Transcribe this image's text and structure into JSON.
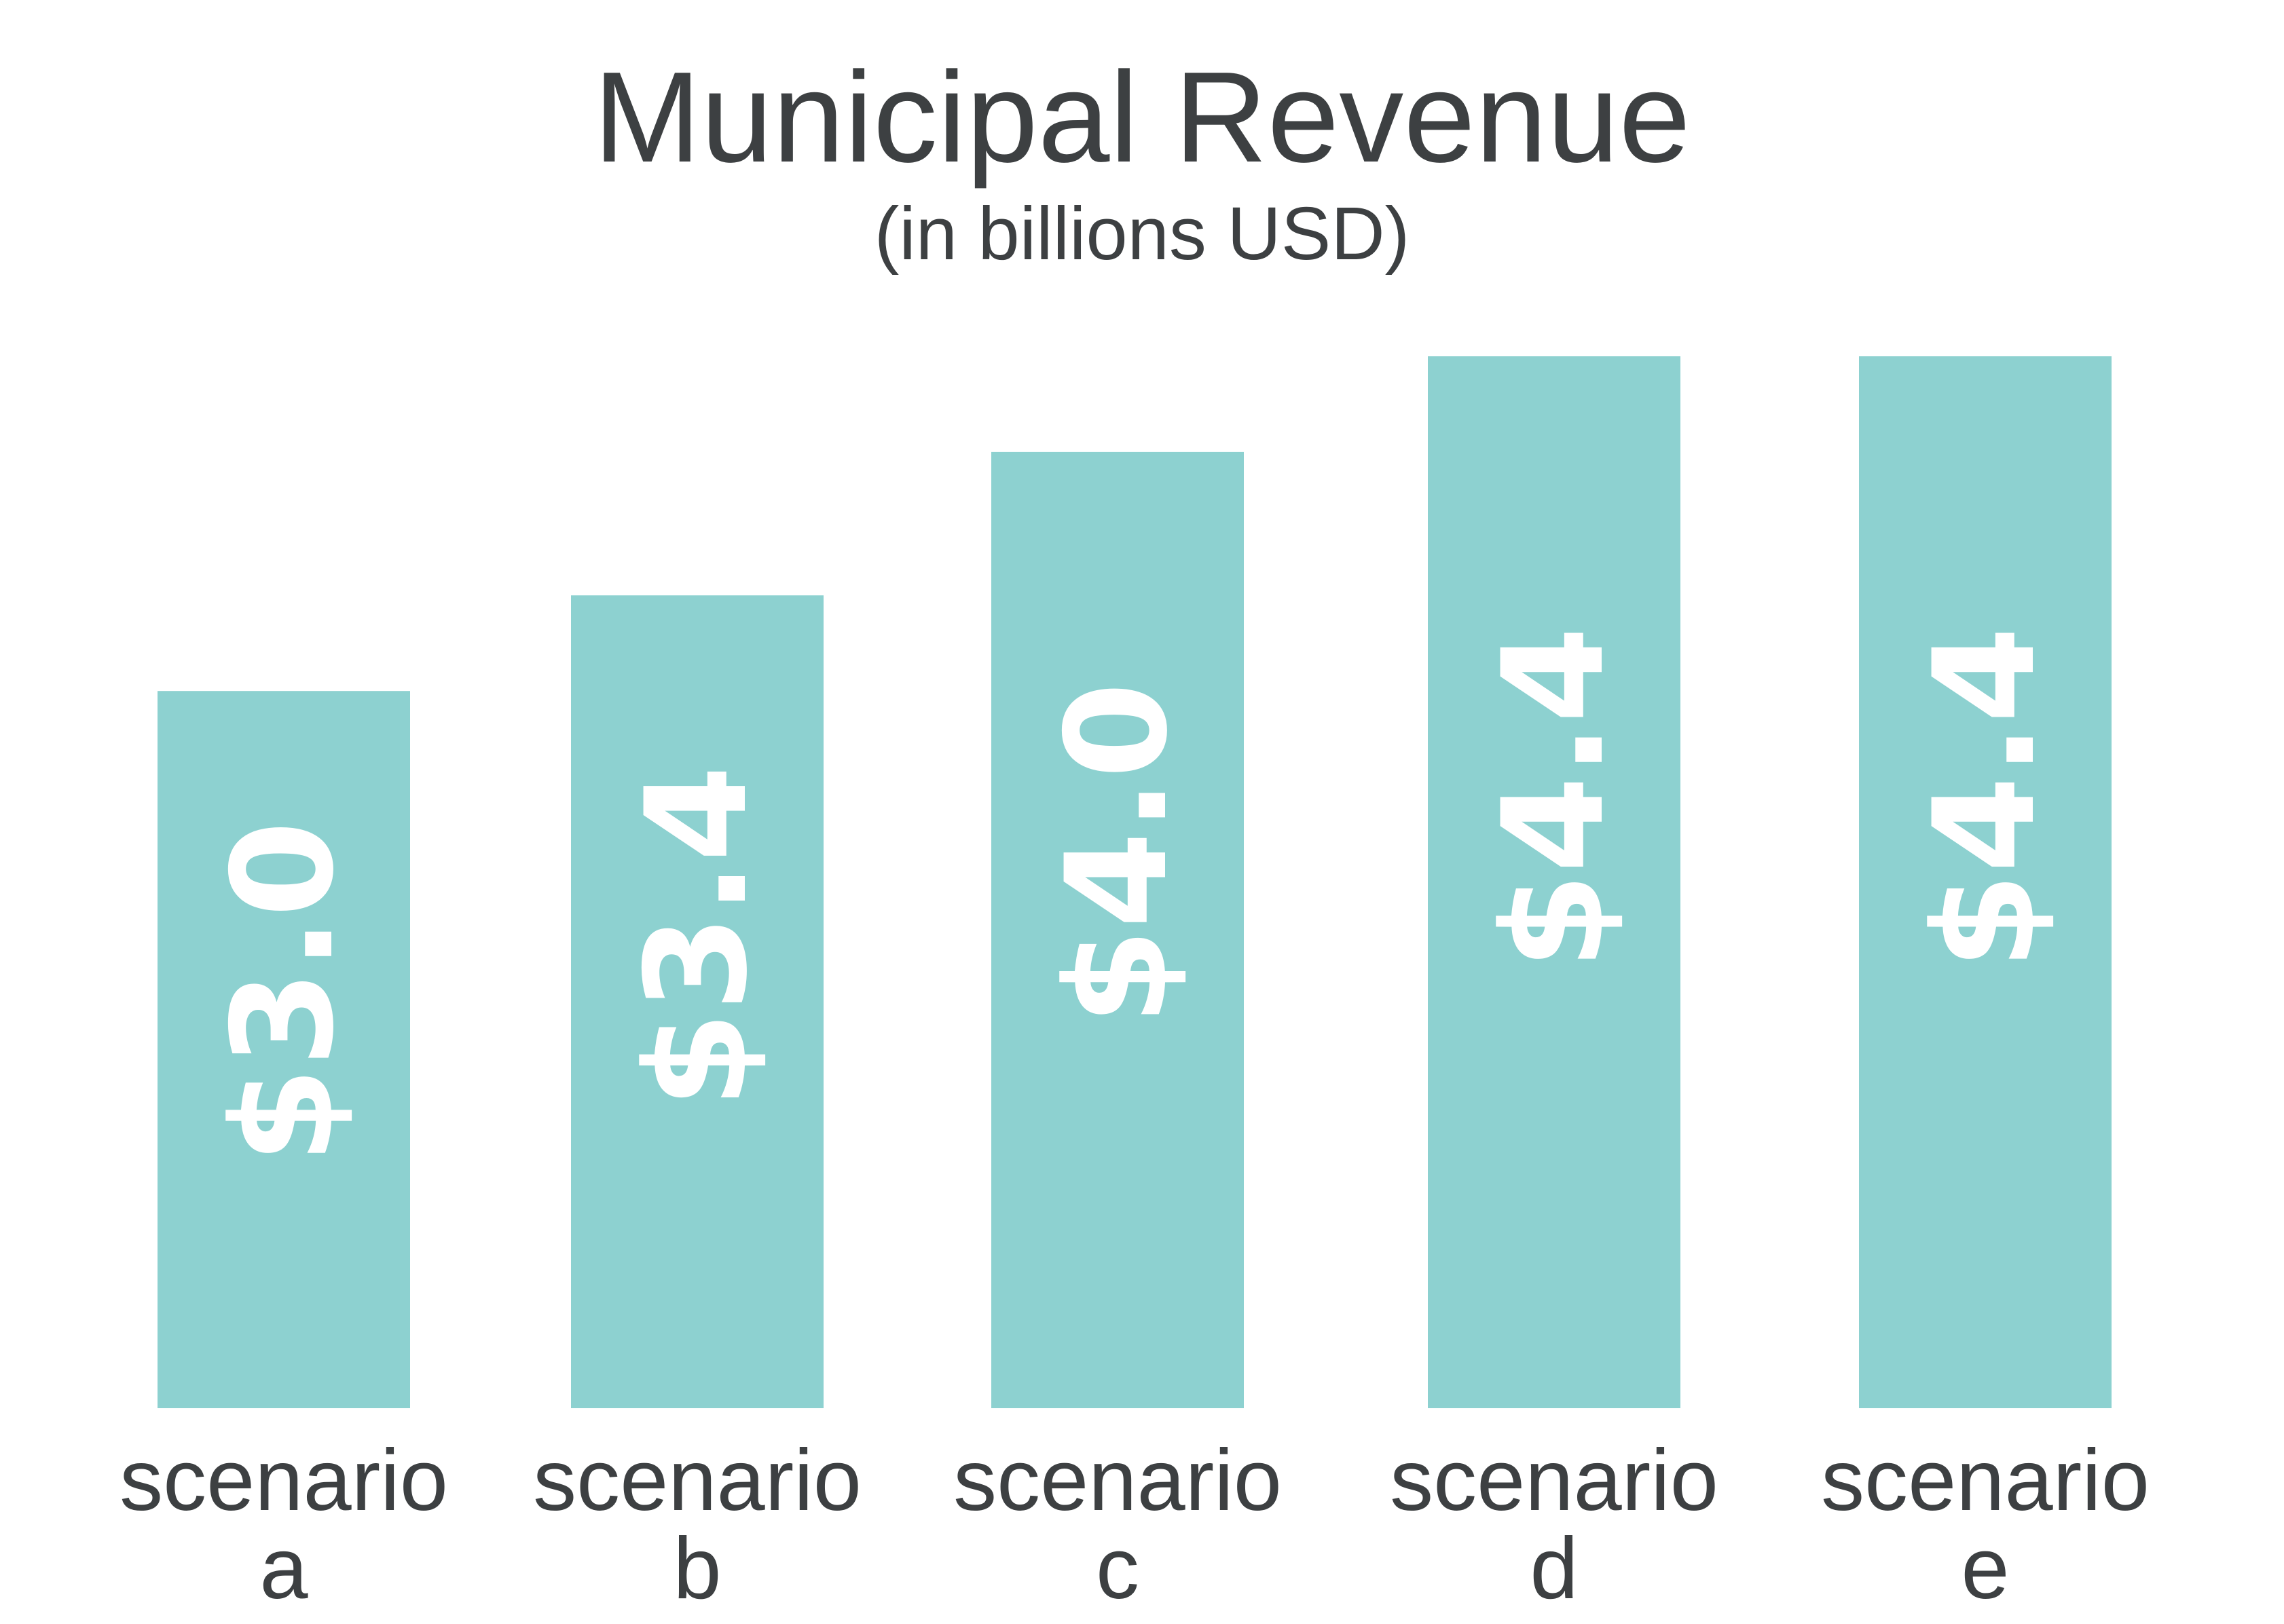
{
  "chart_data": {
    "type": "bar",
    "title": "Municipal Revenue",
    "subtitle": "(in billions USD)",
    "categories": [
      [
        "scenario",
        "a"
      ],
      [
        "scenario",
        "b"
      ],
      [
        "scenario",
        "c"
      ],
      [
        "scenario",
        "d"
      ],
      [
        "scenario",
        "e"
      ]
    ],
    "values": [
      3.0,
      3.4,
      4.0,
      4.4,
      4.4
    ],
    "value_labels": [
      "$3.0",
      "$3.4",
      "$4.0",
      "$4.4",
      "$4.4"
    ],
    "xlabel": "",
    "ylabel": "",
    "ylim": [
      0,
      4.4
    ],
    "grid": false,
    "legend": "none",
    "colors": {
      "bar": "#8dd1d0",
      "value_text": "#ffffff",
      "text": "#3d4042"
    }
  }
}
